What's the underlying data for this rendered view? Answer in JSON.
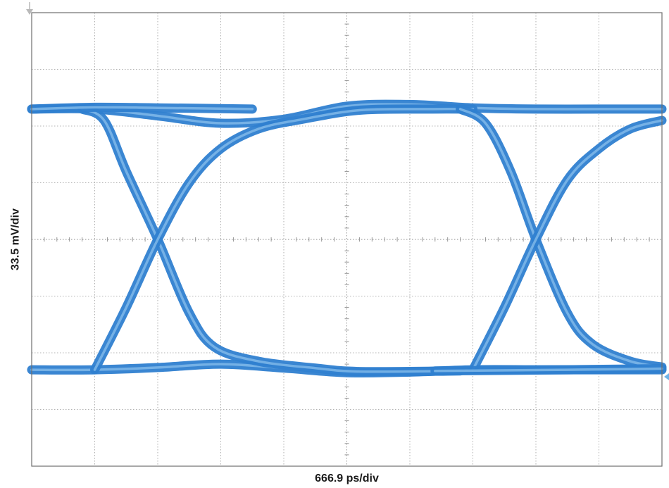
{
  "chart_data": {
    "type": "line",
    "title": "",
    "xlabel": "666.9 ps/div",
    "ylabel": "33.5 mV/div",
    "x_unit": "div",
    "y_unit": "div",
    "xlim": [
      0,
      10
    ],
    "ylim": [
      -4,
      4
    ],
    "grid": true,
    "grid_divisions": {
      "x": 10,
      "y": 8
    },
    "trace_color": "#2f7fd0",
    "trace_highlight": "#8fc3ee",
    "series": [
      {
        "values": [
          [
            [
              0,
              2.3
            ],
            [
              1.0,
              2.3
            ],
            [
              2.0,
              2.18
            ],
            [
              3.0,
              2.05
            ],
            [
              4.0,
              2.12
            ],
            [
              5.0,
              2.35
            ],
            [
              6.0,
              2.38
            ],
            [
              7.0,
              2.32
            ],
            [
              8.0,
              2.3
            ],
            [
              9.0,
              2.3
            ],
            [
              10.0,
              2.3
            ]
          ],
          [
            [
              0,
              -2.3
            ],
            [
              1.0,
              -2.3
            ],
            [
              2.0,
              -2.26
            ],
            [
              3.0,
              -2.2
            ],
            [
              4.0,
              -2.27
            ],
            [
              5.0,
              -2.35
            ],
            [
              6.0,
              -2.34
            ],
            [
              7.0,
              -2.3
            ],
            [
              8.0,
              -2.3
            ],
            [
              9.0,
              -2.3
            ],
            [
              10.0,
              -2.3
            ]
          ],
          [
            [
              0.8,
              2.3
            ],
            [
              1.15,
              2.1
            ],
            [
              1.5,
              1.2
            ],
            [
              2.0,
              0.0
            ],
            [
              2.5,
              -1.3
            ],
            [
              2.9,
              -1.9
            ],
            [
              3.6,
              -2.15
            ],
            [
              4.5,
              -2.27
            ],
            [
              5.2,
              -2.33
            ],
            [
              6.8,
              -2.32
            ]
          ],
          [
            [
              1.0,
              -2.3
            ],
            [
              1.5,
              -1.2
            ],
            [
              2.0,
              0.0
            ],
            [
              2.5,
              1.0
            ],
            [
              3.0,
              1.6
            ],
            [
              3.6,
              1.95
            ],
            [
              4.3,
              2.12
            ],
            [
              5.2,
              2.28
            ],
            [
              6.3,
              2.3
            ],
            [
              7.0,
              2.3
            ]
          ],
          [
            [
              6.8,
              2.3
            ],
            [
              7.2,
              2.05
            ],
            [
              7.6,
              1.2
            ],
            [
              8.0,
              0.0
            ],
            [
              8.5,
              -1.3
            ],
            [
              8.9,
              -1.85
            ],
            [
              9.5,
              -2.15
            ],
            [
              10.0,
              -2.25
            ]
          ],
          [
            [
              7.0,
              -2.3
            ],
            [
              7.5,
              -1.2
            ],
            [
              8.0,
              0.0
            ],
            [
              8.5,
              1.05
            ],
            [
              9.0,
              1.6
            ],
            [
              9.5,
              1.95
            ],
            [
              10.0,
              2.1
            ]
          ],
          [
            [
              0,
              2.3
            ],
            [
              1.0,
              2.33
            ],
            [
              2.0,
              2.32
            ],
            [
              3.5,
              2.3
            ]
          ],
          [
            [
              6.4,
              -2.32
            ],
            [
              8.5,
              -2.3
            ],
            [
              10.0,
              -2.28
            ]
          ]
        ]
      }
    ]
  }
}
